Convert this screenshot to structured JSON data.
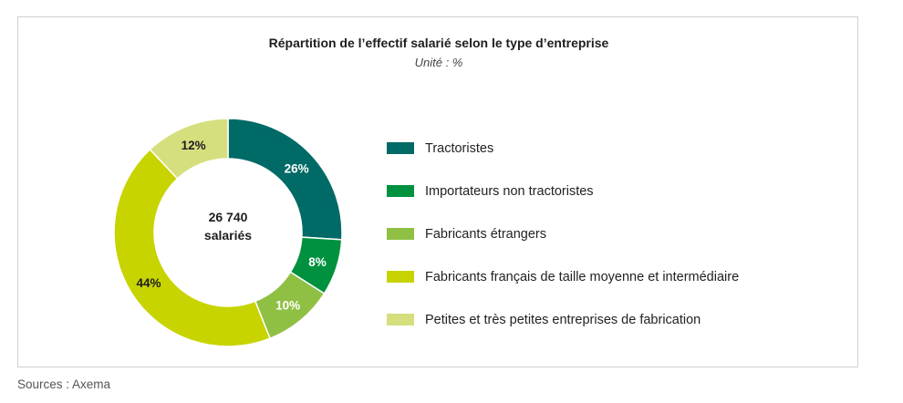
{
  "chart_data": {
    "type": "donut",
    "title": "Répartition de l’effectif salarié selon le type d’entreprise",
    "subtitle": "Unité : %",
    "center_label": [
      "26 740",
      "salariés"
    ],
    "slices": [
      {
        "name": "Tractoristes",
        "value": 26,
        "label": "26%",
        "color": "#006a66"
      },
      {
        "name": "Importateurs non tractoristes",
        "value": 8,
        "label": "8%",
        "color": "#00913f"
      },
      {
        "name": "Fabricants étrangers",
        "value": 10,
        "label": "10%",
        "color": "#8fc044"
      },
      {
        "name": "Fabricants français de taille moyenne et intermédiaire",
        "value": 44,
        "label": "44%",
        "color": "#c8d400"
      },
      {
        "name": "Petites et très petites entreprises de fabrication",
        "value": 12,
        "label": "12%",
        "color": "#d6df7e"
      }
    ],
    "legend_position": "right"
  },
  "source": "Sources : Axema"
}
